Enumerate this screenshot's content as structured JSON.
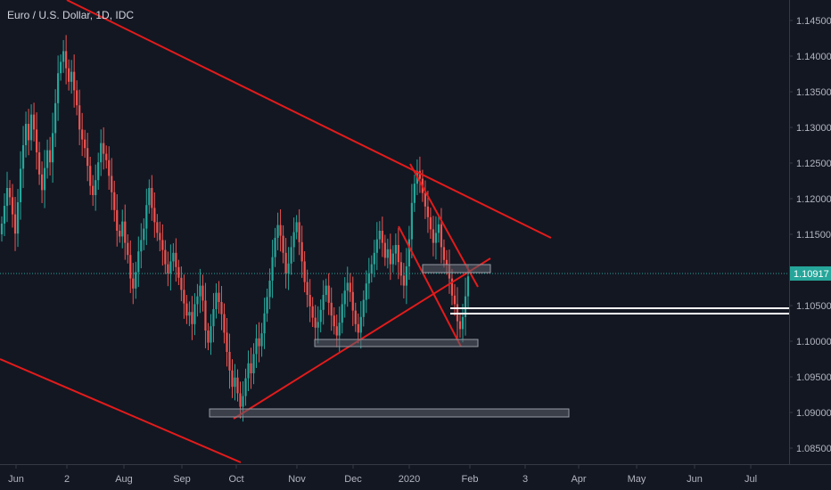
{
  "chart_data": {
    "type": "candlestick",
    "title": "Euro / U.S. Dollar, 1D, IDC",
    "colors": {
      "background": "#131722",
      "up": "#26a69a",
      "down": "#ef5350",
      "trendline": "#e31b1b",
      "zone_fill": "#5d606b",
      "zone_stroke": "#9598a1",
      "level_line": "#ffffff",
      "price_line": "#26a69a",
      "axis_text": "#b2b5be"
    },
    "x_ticks": [
      "Jun",
      "2",
      "Aug",
      "Sep",
      "Oct",
      "Nov",
      "Dec",
      "2020",
      "Feb",
      "3",
      "Apr",
      "May",
      "Jun",
      "Jul"
    ],
    "y_ticks": [
      "1.08500",
      "1.09000",
      "1.09500",
      "1.10000",
      "1.10500",
      "1.11000",
      "1.11500",
      "1.12000",
      "1.12500",
      "1.13000",
      "1.13500",
      "1.14000",
      "1.14500"
    ],
    "ylim": [
      1.083,
      1.1475
    ],
    "last_price": "1.10917",
    "grid": false,
    "series_close": [
      1.1165,
      1.119,
      1.1215,
      1.1202,
      1.1178,
      1.1151,
      1.1195,
      1.1242,
      1.1275,
      1.1305,
      1.1282,
      1.1318,
      1.1297,
      1.1265,
      1.1234,
      1.1212,
      1.1243,
      1.1268,
      1.1251,
      1.1292,
      1.1334,
      1.1376,
      1.1392,
      1.1407,
      1.1383,
      1.1364,
      1.1378,
      1.1352,
      1.1331,
      1.1297,
      1.1283,
      1.1271,
      1.1246,
      1.1218,
      1.1205,
      1.1226,
      1.1251,
      1.1278,
      1.1263,
      1.1254,
      1.1232,
      1.1209,
      1.1184,
      1.1155,
      1.1147,
      1.1168,
      1.1138,
      1.1121,
      1.1088,
      1.1074,
      1.1097,
      1.1126,
      1.1142,
      1.1158,
      1.1191,
      1.1215,
      1.1187,
      1.1167,
      1.1152,
      1.1142,
      1.1128,
      1.1108,
      1.1095,
      1.1112,
      1.1124,
      1.1104,
      1.1089,
      1.1072,
      1.1053,
      1.1036,
      1.1041,
      1.1024,
      1.1052,
      1.1063,
      1.1078,
      1.1057,
      1.1015,
      1.0998,
      1.1021,
      1.1045,
      1.1068,
      1.1055,
      1.1038,
      1.1012,
      1.0985,
      1.0959,
      1.0936,
      1.0949,
      1.0927,
      1.0908,
      1.0923,
      1.0948,
      1.0969,
      1.0955,
      1.0982,
      1.1004,
      1.0993,
      1.1011,
      1.1039,
      1.1062,
      1.1085,
      1.1118,
      1.1145,
      1.1163,
      1.1148,
      1.1124,
      1.1095,
      1.1109,
      1.1132,
      1.1153,
      1.1167,
      1.1139,
      1.1112,
      1.1083,
      1.1065,
      1.1049,
      1.1033,
      1.1019,
      1.1027,
      1.1044,
      1.1065,
      1.1078,
      1.1054,
      1.1036,
      1.1021,
      1.1008,
      1.1026,
      1.1052,
      1.1071,
      1.1082,
      1.1069,
      1.1043,
      1.1024,
      1.1012,
      1.1034,
      1.1058,
      1.1081,
      1.1095,
      1.1108,
      1.1124,
      1.1143,
      1.1155,
      1.1138,
      1.1117,
      1.1129,
      1.1108,
      1.1123,
      1.1135,
      1.1111,
      1.1092,
      1.1078,
      1.1105,
      1.1143,
      1.1194,
      1.1221,
      1.1239,
      1.1228,
      1.1208,
      1.1189,
      1.1174,
      1.1157,
      1.1138,
      1.1152,
      1.1164,
      1.1132,
      1.1114,
      1.1107,
      1.1088,
      1.1064,
      1.1052,
      1.1028,
      1.1017,
      1.1034,
      1.1063,
      1.1091
    ]
  }
}
